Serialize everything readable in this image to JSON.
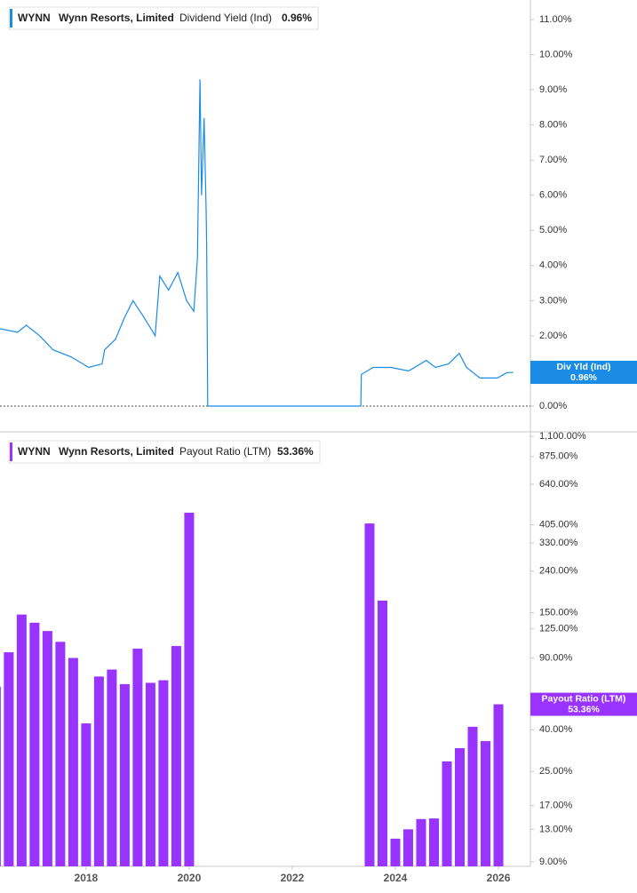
{
  "chart_data": [
    {
      "type": "line",
      "ticker": "WYNN",
      "company": "Wynn Resorts, Limited",
      "tag_label": "Div Yld (Ind)",
      "current": {
        "value": 0.96,
        "label": "0.96%"
      },
      "x": [
        2016.33,
        2016.67,
        2016.84,
        2017.1,
        2017.36,
        2017.71,
        2018.05,
        2018.31,
        2018.36,
        2018.57,
        2018.74,
        2018.91,
        2019.09,
        2019.26,
        2019.34,
        2019.43,
        2019.6,
        2019.78,
        2019.95,
        2020.09,
        2020.16,
        2020.21,
        2020.24,
        2020.29,
        2020.33,
        2020.34,
        2020.36,
        2023.33,
        2023.34,
        2023.57,
        2023.91,
        2024.26,
        2024.6,
        2024.78,
        2025.03,
        2025.24,
        2025.38,
        2025.64,
        2025.98,
        2026.16,
        2026.29
      ],
      "series": [
        {
          "name": "Dividend Yield (Ind)",
          "color": "#1a8ce6",
          "values": [
            2.2,
            2.1,
            2.3,
            2.0,
            1.6,
            1.4,
            1.1,
            1.2,
            1.6,
            1.9,
            2.5,
            3.0,
            2.6,
            2.2,
            2.0,
            3.7,
            3.3,
            3.8,
            3.0,
            2.7,
            4.2,
            9.3,
            6.0,
            8.2,
            5.5,
            4.5,
            0,
            0,
            0.9,
            1.1,
            1.1,
            1.0,
            1.3,
            1.1,
            1.2,
            1.5,
            1.1,
            0.8,
            0.8,
            0.95,
            0.96
          ]
        }
      ],
      "xlim": [
        2016.33,
        2026.62
      ],
      "ylim": [
        0,
        11
      ],
      "yticks": [
        {
          "value": 0,
          "label": "0.00%"
        },
        {
          "value": 1,
          "label": "1.00%"
        },
        {
          "value": 2,
          "label": "2.00%"
        },
        {
          "value": 3,
          "label": "3.00%"
        },
        {
          "value": 4,
          "label": "4.00%"
        },
        {
          "value": 5,
          "label": "5.00%"
        },
        {
          "value": 6,
          "label": "6.00%"
        },
        {
          "value": 7,
          "label": "7.00%"
        },
        {
          "value": 8,
          "label": "8.00%"
        },
        {
          "value": 9,
          "label": "9.00%"
        },
        {
          "value": 10,
          "label": "10.00%"
        },
        {
          "value": 11,
          "label": "11.00%"
        }
      ]
    },
    {
      "type": "bar",
      "ticker": "WYNN",
      "company": "Wynn Resorts, Limited",
      "current": {
        "value": 53.36,
        "label": "53.36%"
      },
      "log_scale": true,
      "x": [
        2016.25,
        2016.5,
        2016.75,
        2017.0,
        2017.25,
        2017.5,
        2017.75,
        2018.0,
        2018.25,
        2018.5,
        2018.75,
        2019.0,
        2019.25,
        2019.5,
        2019.75,
        2020.0,
        2023.5,
        2023.75,
        2024.0,
        2024.25,
        2024.5,
        2024.75,
        2025.0,
        2025.25,
        2025.5,
        2025.75,
        2026.0
      ],
      "series": [
        {
          "name": "Payout Ratio (LTM)",
          "color": "#9933ff",
          "values": [
            65,
            96,
            147,
            134,
            122,
            108,
            90,
            43,
            73,
            79,
            67,
            100,
            68,
            70,
            103,
            464,
            411,
            172,
            11.7,
            13.0,
            14.6,
            14.7,
            28,
            32.5,
            41.4,
            35.2,
            53.36
          ]
        }
      ],
      "xlim": [
        2016.33,
        2026.62
      ],
      "ylim": [
        9,
        1100
      ],
      "xticks": [
        2018,
        2020,
        2022,
        2024,
        2026
      ],
      "yticks": [
        {
          "value": 9,
          "label": "9.00%"
        },
        {
          "value": 13,
          "label": "13.00%"
        },
        {
          "value": 17,
          "label": "17.00%"
        },
        {
          "value": 25,
          "label": "25.00%"
        },
        {
          "value": 40,
          "label": "40.00%"
        },
        {
          "value": 90,
          "label": "90.00%"
        },
        {
          "value": 125,
          "label": "125.00%"
        },
        {
          "value": 150,
          "label": "150.00%"
        },
        {
          "value": 240,
          "label": "240.00%"
        },
        {
          "value": 330,
          "label": "330.00%"
        },
        {
          "value": 405,
          "label": "405.00%"
        },
        {
          "value": 640,
          "label": "640.00%"
        },
        {
          "value": 875,
          "label": "875.00%"
        },
        {
          "value": 1100,
          "label": "1,100.00%"
        }
      ]
    }
  ]
}
